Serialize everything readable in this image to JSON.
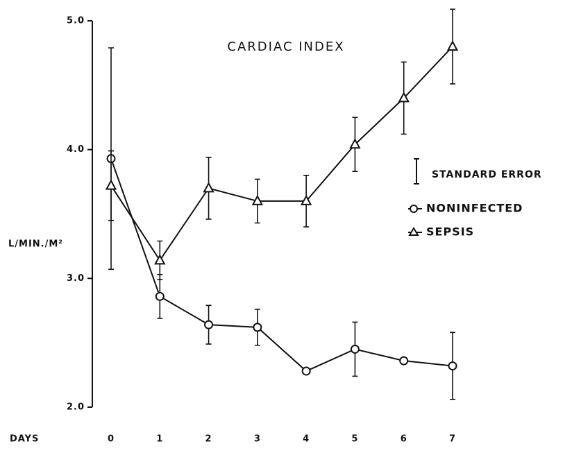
{
  "chart_data": {
    "type": "line",
    "title": "CARDIAC INDEX",
    "x_label": "DAYS",
    "y_label": "L/MIN./M²",
    "x": [
      0,
      1,
      2,
      3,
      4,
      5,
      6,
      7
    ],
    "xlim": [
      0,
      7
    ],
    "xticks": [
      0,
      1,
      2,
      3,
      4,
      5,
      6,
      7
    ],
    "ylim": [
      2,
      5
    ],
    "yticks": [
      {
        "value": 2,
        "label": "2.0"
      },
      {
        "value": 3,
        "label": "3.0"
      },
      {
        "value": 4,
        "label": "4.0"
      },
      {
        "value": 5,
        "label": "5.0"
      }
    ],
    "error_label": "STANDARD ERROR",
    "series": [
      {
        "name": "NONINFECTED",
        "color": "#111111",
        "marker": "circle",
        "values": [
          3.93,
          2.86,
          2.64,
          2.62,
          2.28,
          2.45,
          2.36,
          2.32
        ],
        "errors": [
          0.86,
          0.17,
          0.15,
          0.14,
          null,
          0.21,
          null,
          0.26
        ]
      },
      {
        "name": "SEPSIS",
        "color": "#111111",
        "marker": "triangle",
        "values": [
          3.72,
          3.14,
          3.7,
          3.6,
          3.6,
          4.04,
          4.4,
          4.8
        ],
        "errors": [
          0.27,
          0.15,
          0.24,
          0.17,
          0.2,
          0.21,
          0.28,
          0.29
        ]
      }
    ]
  }
}
